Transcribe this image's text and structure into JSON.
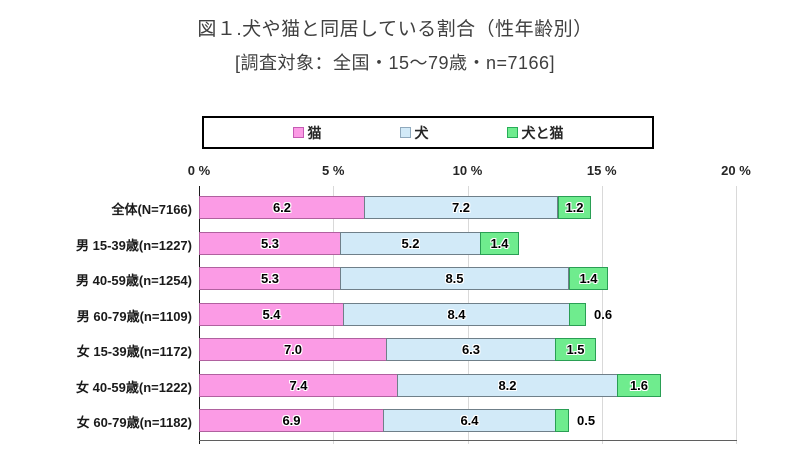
{
  "title": "図１.犬や猫と同居している割合（性年齢別）",
  "subtitle": "[調査対象：全国・15～79歳・n=7166]",
  "legend": {
    "items": [
      {
        "label": "猫",
        "slug": "cat",
        "fill": "#fb9be5",
        "border": "#c65bb4"
      },
      {
        "label": "犬",
        "slug": "dog",
        "fill": "#d2eaf8",
        "border": "#8fa9bd"
      },
      {
        "label": "犬と猫",
        "slug": "dog-and-cat",
        "fill": "#6fec8e",
        "border": "#27ae58"
      }
    ]
  },
  "chart_data": {
    "type": "bar",
    "orientation": "horizontal",
    "stacked": true,
    "title": "図１.犬や猫と同居している割合（性年齢別）",
    "subtitle": "[調査対象：全国・15～79歳・n=7166]",
    "categories": [
      "全体(N=7166)",
      "男 15-39歳(n=1227)",
      "男 40-59歳(n=1254)",
      "男 60-79歳(n=1109)",
      "女 15-39歳(n=1172)",
      "女 40-59歳(n=1222)",
      "女 60-79歳(n=1182)"
    ],
    "series": [
      {
        "name": "猫",
        "slug": "cat",
        "fill": "#fb9be5",
        "border": "#b0619f",
        "values": [
          6.2,
          5.3,
          5.3,
          5.4,
          7.0,
          7.4,
          6.9
        ]
      },
      {
        "name": "犬",
        "slug": "dog",
        "fill": "#d2eaf8",
        "border": "#6f7f89",
        "values": [
          7.2,
          5.2,
          8.5,
          8.4,
          6.3,
          8.2,
          6.4
        ]
      },
      {
        "name": "犬と猫",
        "slug": "dog-and-cat",
        "fill": "#6fec8e",
        "border": "#2a9e54",
        "values": [
          1.2,
          1.4,
          1.4,
          0.6,
          1.5,
          1.6,
          0.5
        ]
      }
    ],
    "x_ticks": [
      "0 %",
      "5 %",
      "10 %",
      "15 %",
      "20 %"
    ],
    "xlim": [
      0,
      20
    ],
    "grid": true,
    "legend_position": "top",
    "value_labels": "inside; shown outside bar when segment is too small (0.6, 0.5)"
  }
}
